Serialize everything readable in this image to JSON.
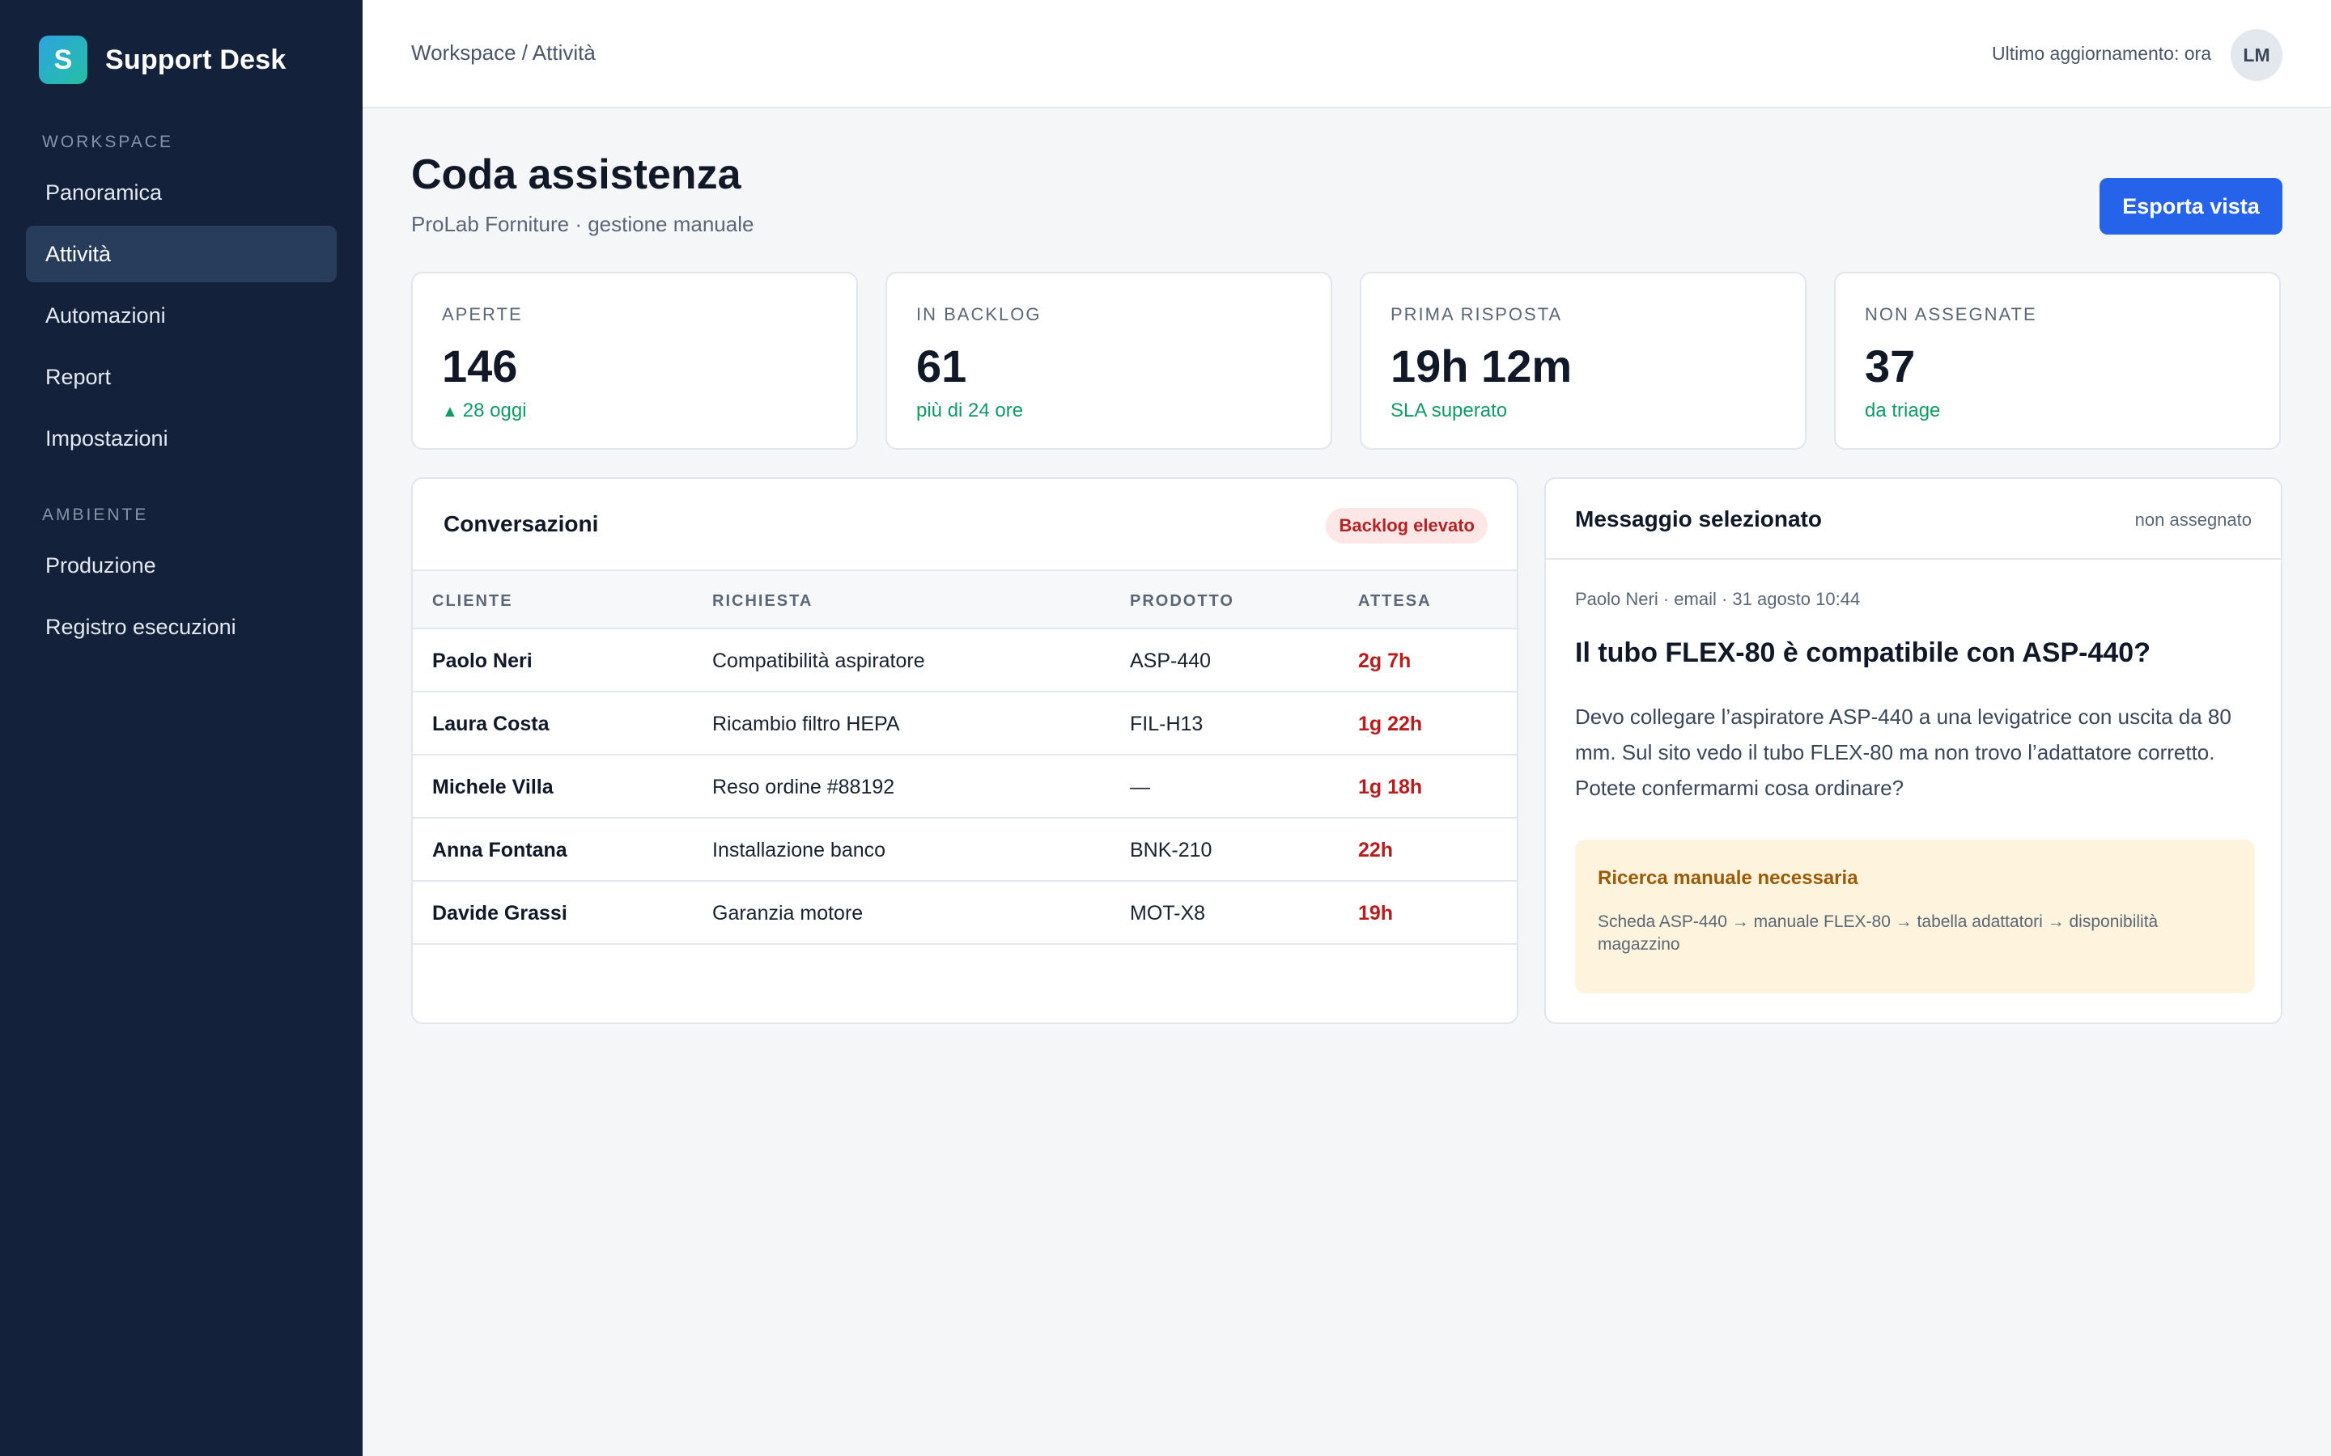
{
  "brand": {
    "logo_letter": "S",
    "name": "Support Desk"
  },
  "sidebar": {
    "sections": [
      {
        "label": "WORKSPACE",
        "items": [
          {
            "label": "Panoramica"
          },
          {
            "label": "Attività"
          },
          {
            "label": "Automazioni"
          },
          {
            "label": "Report"
          },
          {
            "label": "Impostazioni"
          }
        ]
      },
      {
        "label": "AMBIENTE",
        "items": [
          {
            "label": "Produzione"
          },
          {
            "label": "Registro esecuzioni"
          }
        ]
      }
    ],
    "active_item": "Attività"
  },
  "header": {
    "breadcrumb": "Workspace / Attività",
    "last_update": "Ultimo aggiornamento: ora",
    "avatar_initials": "LM"
  },
  "page": {
    "title": "Coda assistenza",
    "subtitle": "ProLab Forniture · gestione manuale",
    "export_label": "Esporta vista"
  },
  "kpis": [
    {
      "label": "APERTE",
      "value": "146",
      "note": "28 oggi",
      "note_icon": "▲"
    },
    {
      "label": "IN BACKLOG",
      "value": "61",
      "note": "più di 24 ore"
    },
    {
      "label": "PRIMA RISPOSTA",
      "value": "19h 12m",
      "note": "SLA superato"
    },
    {
      "label": "NON ASSEGNATE",
      "value": "37",
      "note": "da triage"
    }
  ],
  "conversations": {
    "title": "Conversazioni",
    "badge": "Backlog elevato",
    "columns": [
      "CLIENTE",
      "RICHIESTA",
      "PRODOTTO",
      "ATTESA"
    ],
    "rows": [
      {
        "customer": "Paolo Neri",
        "request": "Compatibilità aspiratore",
        "product": "ASP-440",
        "wait": "2g 7h"
      },
      {
        "customer": "Laura Costa",
        "request": "Ricambio filtro HEPA",
        "product": "FIL-H13",
        "wait": "1g 22h"
      },
      {
        "customer": "Michele Villa",
        "request": "Reso ordine #88192",
        "product": "—",
        "wait": "1g 18h"
      },
      {
        "customer": "Anna Fontana",
        "request": "Installazione banco",
        "product": "BNK-210",
        "wait": "22h"
      },
      {
        "customer": "Davide Grassi",
        "request": "Garanzia motore",
        "product": "MOT-X8",
        "wait": "19h"
      }
    ]
  },
  "message": {
    "panel_title": "Messaggio selezionato",
    "status": "non assegnato",
    "meta": "Paolo Neri · email · 31 agosto 10:44",
    "subject": "Il tubo FLEX-80 è compatibile con ASP-440?",
    "body": "Devo collegare l’aspiratore ASP-440 a una levigatrice con uscita da 80 mm. Sul sito vedo il tubo FLEX-80 ma non trovo l’adattatore corretto. Potete confermarmi cosa ordinare?",
    "callout_title": "Ricerca manuale necessaria",
    "callout_text": "Scheda ASP-440 → manuale FLEX-80 → tabella adattatori → disponibilità magazzino"
  },
  "colors": {
    "sidebar_bg": "#14213b",
    "accent": "#2563eb",
    "positive": "#0f9b64",
    "danger": "#b91c1c",
    "warning_bg": "#fef3dc"
  }
}
